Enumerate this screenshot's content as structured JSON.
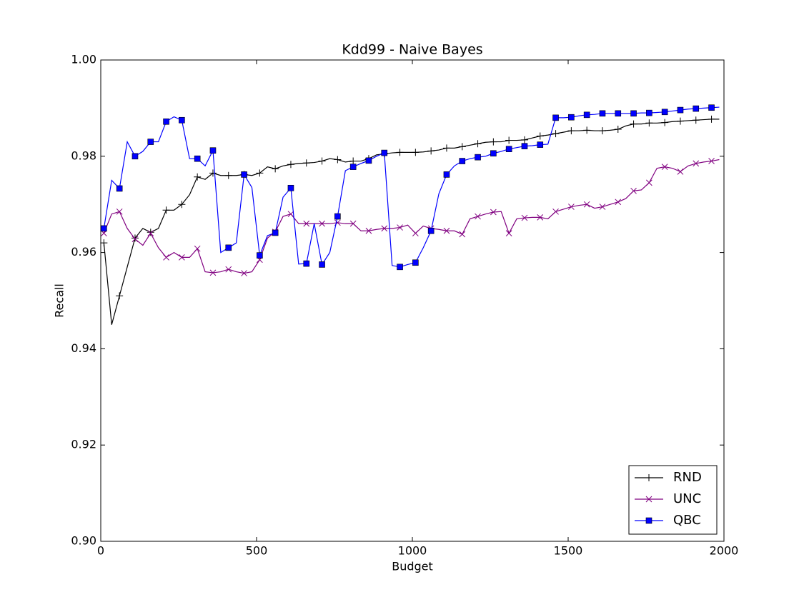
{
  "chart_data": {
    "type": "line",
    "title": "Kdd99 - Naive Bayes",
    "x_label": "Budget",
    "y_label": "Recall",
    "x": [
      10,
      35,
      60,
      85,
      110,
      135,
      160,
      185,
      210,
      235,
      260,
      285,
      310,
      335,
      360,
      385,
      410,
      435,
      460,
      485,
      510,
      535,
      560,
      585,
      610,
      635,
      660,
      685,
      710,
      735,
      760,
      785,
      810,
      835,
      860,
      885,
      910,
      935,
      960,
      985,
      1010,
      1035,
      1060,
      1085,
      1110,
      1135,
      1160,
      1185,
      1210,
      1235,
      1260,
      1285,
      1310,
      1335,
      1360,
      1385,
      1410,
      1435,
      1460,
      1485,
      1510,
      1535,
      1560,
      1585,
      1610,
      1635,
      1660,
      1685,
      1710,
      1735,
      1760,
      1785,
      1810,
      1835,
      1860,
      1885,
      1910,
      1935,
      1960,
      1985
    ],
    "series": [
      {
        "name": "RND",
        "color": "#000000",
        "marker": "plus",
        "values": [
          0.962,
          0.945,
          0.951,
          0.957,
          0.963,
          0.965,
          0.9642,
          0.965,
          0.9688,
          0.9688,
          0.97,
          0.972,
          0.9757,
          0.9752,
          0.9765,
          0.976,
          0.976,
          0.976,
          0.9762,
          0.976,
          0.9765,
          0.9778,
          0.9774,
          0.978,
          0.9783,
          0.9785,
          0.9786,
          0.9787,
          0.979,
          0.9795,
          0.9793,
          0.9788,
          0.979,
          0.979,
          0.9795,
          0.9803,
          0.9805,
          0.9807,
          0.9808,
          0.9808,
          0.9808,
          0.9809,
          0.9811,
          0.9813,
          0.9817,
          0.9817,
          0.982,
          0.9823,
          0.9826,
          0.9829,
          0.983,
          0.983,
          0.9833,
          0.9833,
          0.9834,
          0.9838,
          0.9842,
          0.9844,
          0.9847,
          0.985,
          0.9853,
          0.9853,
          0.9854,
          0.9853,
          0.9853,
          0.9854,
          0.9856,
          0.9863,
          0.9867,
          0.9867,
          0.9869,
          0.9869,
          0.987,
          0.9872,
          0.9873,
          0.9874,
          0.9875,
          0.9876,
          0.9877,
          0.9877
        ]
      },
      {
        "name": "UNC",
        "color": "#800080",
        "marker": "cross",
        "values": [
          0.964,
          0.968,
          0.9685,
          0.965,
          0.9628,
          0.9615,
          0.964,
          0.961,
          0.959,
          0.96,
          0.959,
          0.959,
          0.9608,
          0.956,
          0.9558,
          0.956,
          0.9565,
          0.956,
          0.9557,
          0.956,
          0.9585,
          0.963,
          0.9643,
          0.9675,
          0.968,
          0.966,
          0.966,
          0.966,
          0.966,
          0.966,
          0.9662,
          0.966,
          0.966,
          0.9645,
          0.9645,
          0.9648,
          0.965,
          0.965,
          0.9652,
          0.9657,
          0.964,
          0.9655,
          0.965,
          0.9648,
          0.9645,
          0.9645,
          0.9638,
          0.967,
          0.9675,
          0.968,
          0.9684,
          0.9685,
          0.964,
          0.967,
          0.9672,
          0.9673,
          0.9673,
          0.967,
          0.9685,
          0.969,
          0.9695,
          0.9698,
          0.97,
          0.9692,
          0.9695,
          0.97,
          0.9705,
          0.9712,
          0.9728,
          0.973,
          0.9745,
          0.9775,
          0.9778,
          0.9775,
          0.9768,
          0.978,
          0.9785,
          0.9788,
          0.979,
          0.9793
        ]
      },
      {
        "name": "QBC",
        "color": "#0000ff",
        "marker": "square",
        "values": [
          0.965,
          0.975,
          0.9733,
          0.983,
          0.98,
          0.981,
          0.983,
          0.983,
          0.9872,
          0.9882,
          0.9875,
          0.9795,
          0.9795,
          0.978,
          0.9812,
          0.96,
          0.961,
          0.962,
          0.9762,
          0.9735,
          0.9594,
          0.9635,
          0.9641,
          0.9715,
          0.9734,
          0.9576,
          0.9577,
          0.966,
          0.9575,
          0.96,
          0.9675,
          0.977,
          0.9778,
          0.9785,
          0.9791,
          0.98,
          0.9807,
          0.9573,
          0.957,
          0.9575,
          0.9579,
          0.961,
          0.9645,
          0.9722,
          0.9762,
          0.978,
          0.979,
          0.9795,
          0.9798,
          0.98,
          0.9806,
          0.981,
          0.9815,
          0.9818,
          0.9821,
          0.9822,
          0.9824,
          0.9825,
          0.988,
          0.988,
          0.9881,
          0.9884,
          0.9886,
          0.9887,
          0.9889,
          0.9889,
          0.9889,
          0.9889,
          0.9889,
          0.989,
          0.989,
          0.9891,
          0.9892,
          0.9894,
          0.9896,
          0.9898,
          0.9899,
          0.99,
          0.9901,
          0.9902
        ]
      }
    ],
    "markevery": 2,
    "xlim": [
      0,
      2000
    ],
    "xticks": [
      0,
      500,
      1000,
      1500,
      2000
    ],
    "ylim": [
      0.9,
      1.0
    ],
    "yticks": [
      {
        "value": 0.9,
        "label": "0.90"
      },
      0.92,
      0.94,
      0.96,
      0.98,
      {
        "value": 1.0,
        "label": "1.00"
      }
    ],
    "legend": "lower right"
  }
}
